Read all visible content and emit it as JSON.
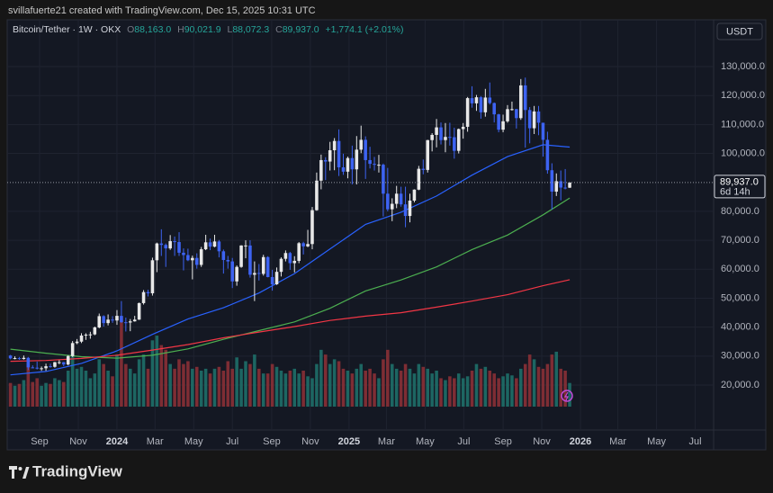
{
  "page": {
    "attribution": "svillafuerte21 created with TradingView.com, Dec 15, 2025 10:31 UTC",
    "brand": "TradingView"
  },
  "chart_data": {
    "type": "candlestick",
    "symbol": "Bitcoin/Tether · 1W · OKX",
    "quote": [
      [
        "O",
        "88,163.0"
      ],
      [
        "H",
        "90,021.9"
      ],
      [
        "L",
        "88,072.3"
      ],
      [
        "C",
        "89,937.0"
      ]
    ],
    "change": "+1,774.1 (+2.01%)",
    "currency": "USDT",
    "last_price_label": "89,937.0",
    "countdown": "6d 14h",
    "grid": true,
    "up_color": "#e8e8e8",
    "down_color": "#3d63f2",
    "volume_up_color": "#1e6f69",
    "volume_down_color": "#8a3036",
    "xlim": [
      -0.73,
      158.43
    ],
    "ylim": [
      4465,
      146160
    ],
    "xticks": [
      {
        "value": 6.57,
        "label": "Sep"
      },
      {
        "value": 15.29,
        "label": "Nov"
      },
      {
        "value": 24.0,
        "label": "2024"
      },
      {
        "value": 32.57,
        "label": "Mar"
      },
      {
        "value": 41.29,
        "label": "May"
      },
      {
        "value": 50.0,
        "label": "Jul"
      },
      {
        "value": 58.86,
        "label": "Sep"
      },
      {
        "value": 67.57,
        "label": "Nov"
      },
      {
        "value": 76.29,
        "label": "2025"
      },
      {
        "value": 84.71,
        "label": "Mar"
      },
      {
        "value": 93.43,
        "label": "May"
      },
      {
        "value": 102.14,
        "label": "Jul"
      },
      {
        "value": 111.0,
        "label": "Sep"
      },
      {
        "value": 119.71,
        "label": "Nov"
      },
      {
        "value": 128.43,
        "label": "2026"
      },
      {
        "value": 136.86,
        "label": "Mar"
      },
      {
        "value": 145.57,
        "label": "May"
      },
      {
        "value": 154.29,
        "label": "Jul"
      }
    ],
    "yticks": [
      {
        "value": 20000,
        "label": "20,000.0"
      },
      {
        "value": 30000,
        "label": "30,000.0"
      },
      {
        "value": 40000,
        "label": "40,000.0"
      },
      {
        "value": 50000,
        "label": "50,000.0"
      },
      {
        "value": 60000,
        "label": "60,000.0"
      },
      {
        "value": 70000,
        "label": "70,000.0"
      },
      {
        "value": 80000,
        "label": "80,000.0"
      },
      {
        "value": 100000,
        "label": "100,000.0"
      },
      {
        "value": 110000,
        "label": "110,000.0"
      },
      {
        "value": 120000,
        "label": "120,000.0"
      },
      {
        "value": 130000,
        "label": "130,000.0"
      }
    ],
    "ohlc": [
      [
        30200,
        30400,
        28900,
        29200
      ],
      [
        29200,
        29900,
        28900,
        29300
      ],
      [
        29300,
        29700,
        28700,
        29000
      ],
      [
        29000,
        30200,
        28800,
        29400
      ],
      [
        29400,
        29700,
        25200,
        26100
      ],
      [
        26100,
        26800,
        25800,
        26000
      ],
      [
        26000,
        28100,
        25400,
        25800
      ],
      [
        25800,
        26400,
        24900,
        25800
      ],
      [
        25800,
        27400,
        24900,
        26500
      ],
      [
        26500,
        27400,
        26000,
        26300
      ],
      [
        26300,
        28000,
        26000,
        27900
      ],
      [
        27900,
        28600,
        27200,
        27900
      ],
      [
        27900,
        28000,
        26500,
        27100
      ],
      [
        27100,
        30300,
        26800,
        30000
      ],
      [
        30000,
        35200,
        29700,
        34500
      ],
      [
        34500,
        35900,
        34100,
        35000
      ],
      [
        35000,
        37900,
        34500,
        37100
      ],
      [
        37100,
        37900,
        35600,
        37400
      ],
      [
        37400,
        38400,
        36000,
        37500
      ],
      [
        37500,
        40200,
        37200,
        39900
      ],
      [
        39900,
        44700,
        39600,
        43800
      ],
      [
        43800,
        44100,
        40200,
        41400
      ],
      [
        41400,
        44400,
        40600,
        42600
      ],
      [
        42600,
        43800,
        41500,
        42300
      ],
      [
        42300,
        45900,
        40800,
        43900
      ],
      [
        43900,
        49000,
        41500,
        41700
      ],
      [
        41700,
        43300,
        38500,
        41600
      ],
      [
        41600,
        42800,
        38600,
        42000
      ],
      [
        42000,
        43900,
        41900,
        42600
      ],
      [
        42600,
        48500,
        42500,
        48300
      ],
      [
        48300,
        52800,
        47800,
        52100
      ],
      [
        52100,
        52900,
        50600,
        51700
      ],
      [
        51700,
        64000,
        50900,
        63100
      ],
      [
        63100,
        69200,
        59000,
        68900
      ],
      [
        68900,
        73800,
        64600,
        68400
      ],
      [
        68400,
        68900,
        60800,
        67200
      ],
      [
        67200,
        71800,
        66700,
        69700
      ],
      [
        69700,
        71300,
        64600,
        69400
      ],
      [
        69400,
        72800,
        64600,
        65700
      ],
      [
        65700,
        67200,
        59600,
        64900
      ],
      [
        64900,
        67100,
        62800,
        63100
      ],
      [
        63100,
        64700,
        56500,
        63900
      ],
      [
        63900,
        65500,
        60200,
        61500
      ],
      [
        61500,
        67700,
        60800,
        66900
      ],
      [
        66900,
        71900,
        66600,
        69300
      ],
      [
        69300,
        70600,
        66600,
        67800
      ],
      [
        67800,
        71900,
        67600,
        69600
      ],
      [
        69600,
        70100,
        64100,
        66200
      ],
      [
        66200,
        66800,
        58500,
        63200
      ],
      [
        63200,
        64600,
        60200,
        62700
      ],
      [
        62700,
        63900,
        53500,
        55800
      ],
      [
        55800,
        61300,
        54300,
        60800
      ],
      [
        60800,
        68300,
        60500,
        68200
      ],
      [
        68200,
        70000,
        63800,
        68200
      ],
      [
        68200,
        70000,
        57100,
        58100
      ],
      [
        58100,
        62700,
        49000,
        58700
      ],
      [
        58700,
        61800,
        56100,
        58400
      ],
      [
        58400,
        65000,
        57800,
        64200
      ],
      [
        64200,
        64500,
        57200,
        57300
      ],
      [
        57300,
        59800,
        52600,
        54800
      ],
      [
        54800,
        60600,
        54600,
        59100
      ],
      [
        59100,
        64100,
        57500,
        63600
      ],
      [
        63600,
        66500,
        62700,
        65600
      ],
      [
        65600,
        66000,
        59800,
        62100
      ],
      [
        62100,
        64500,
        58900,
        62900
      ],
      [
        62900,
        69400,
        62100,
        69000
      ],
      [
        69000,
        69500,
        65100,
        67900
      ],
      [
        67900,
        73600,
        67600,
        68700
      ],
      [
        68700,
        81500,
        66900,
        80400
      ],
      [
        80400,
        93400,
        80200,
        90600
      ],
      [
        90600,
        99600,
        87600,
        97700
      ],
      [
        97700,
        98700,
        90800,
        97200
      ],
      [
        97200,
        104000,
        94100,
        101100
      ],
      [
        101100,
        105300,
        94200,
        104300
      ],
      [
        104300,
        108300,
        92200,
        95200
      ],
      [
        95200,
        99900,
        92600,
        93700
      ],
      [
        93700,
        98900,
        91400,
        98400
      ],
      [
        98400,
        102700,
        89300,
        94500
      ],
      [
        94500,
        106000,
        89300,
        101300
      ],
      [
        101300,
        109600,
        100100,
        104700
      ],
      [
        104700,
        105900,
        91200,
        97700
      ],
      [
        97700,
        102300,
        94800,
        96400
      ],
      [
        96400,
        98800,
        94100,
        96100
      ],
      [
        96100,
        99500,
        93400,
        96100
      ],
      [
        96100,
        96500,
        78200,
        86100
      ],
      [
        86100,
        95000,
        80000,
        80700
      ],
      [
        80700,
        84500,
        76600,
        82600
      ],
      [
        82600,
        88800,
        81100,
        86100
      ],
      [
        86100,
        88500,
        81600,
        82400
      ],
      [
        82400,
        88500,
        74500,
        78400
      ],
      [
        78400,
        86100,
        76200,
        83700
      ],
      [
        83700,
        87600,
        83100,
        87500
      ],
      [
        87500,
        95700,
        87300,
        94700
      ],
      [
        94700,
        97900,
        92800,
        94300
      ],
      [
        94300,
        104700,
        93400,
        104600
      ],
      [
        104600,
        107000,
        100700,
        106400
      ],
      [
        106400,
        111900,
        102100,
        109000
      ],
      [
        109000,
        110700,
        103100,
        104600
      ],
      [
        104600,
        110500,
        100400,
        105700
      ],
      [
        105700,
        110600,
        102700,
        105600
      ],
      [
        105600,
        108900,
        98200,
        100900
      ],
      [
        100900,
        108600,
        100000,
        108400
      ],
      [
        108400,
        110500,
        105100,
        109200
      ],
      [
        109200,
        119500,
        107500,
        119100
      ],
      [
        119100,
        123200,
        115800,
        117300
      ],
      [
        117300,
        120200,
        114700,
        119400
      ],
      [
        119400,
        119800,
        112000,
        114200
      ],
      [
        114200,
        122300,
        112700,
        119300
      ],
      [
        119300,
        124500,
        116900,
        117400
      ],
      [
        117400,
        117600,
        110700,
        113500
      ],
      [
        113500,
        113700,
        107300,
        108200
      ],
      [
        108200,
        113400,
        107300,
        111100
      ],
      [
        111100,
        116700,
        110600,
        115300
      ],
      [
        115300,
        117900,
        114800,
        115300
      ],
      [
        115300,
        115400,
        108600,
        112200
      ],
      [
        112200,
        125700,
        111600,
        123500
      ],
      [
        123500,
        126200,
        102000,
        115000
      ],
      [
        115000,
        116000,
        103500,
        108700
      ],
      [
        108700,
        116400,
        106700,
        114500
      ],
      [
        114500,
        116400,
        106300,
        110600
      ],
      [
        110600,
        110600,
        98900,
        104700
      ],
      [
        104700,
        107500,
        93000,
        94200
      ],
      [
        94200,
        96600,
        80600,
        86800
      ],
      [
        86800,
        93100,
        85300,
        90400
      ],
      [
        90400,
        94100,
        83800,
        88200
      ],
      [
        88200,
        94600,
        87600,
        88163
      ],
      [
        88163,
        90021.9,
        88072.3,
        89937
      ]
    ],
    "volume": [
      25,
      22,
      24,
      28,
      45,
      26,
      30,
      22,
      25,
      24,
      30,
      28,
      26,
      38,
      55,
      40,
      42,
      38,
      30,
      35,
      50,
      45,
      38,
      32,
      55,
      95,
      45,
      40,
      35,
      50,
      55,
      40,
      70,
      75,
      65,
      60,
      45,
      40,
      50,
      45,
      48,
      40,
      42,
      38,
      40,
      35,
      40,
      42,
      38,
      48,
      40,
      52,
      40,
      48,
      45,
      55,
      40,
      35,
      35,
      45,
      42,
      38,
      35,
      38,
      40,
      35,
      38,
      32,
      30,
      45,
      60,
      55,
      45,
      50,
      48,
      40,
      38,
      35,
      40,
      45,
      38,
      40,
      35,
      30,
      50,
      60,
      45,
      40,
      38,
      45,
      40,
      35,
      45,
      42,
      40,
      35,
      38,
      30,
      28,
      32,
      30,
      35,
      30,
      32,
      38,
      45,
      40,
      42,
      38,
      35,
      30,
      32,
      35,
      33,
      30,
      40,
      45,
      55,
      50,
      42,
      40,
      45,
      55,
      58,
      40,
      38,
      25
    ],
    "ma_x": [
      0,
      8,
      16,
      24,
      32,
      40,
      48,
      56,
      64,
      72,
      80,
      88,
      96,
      104,
      112,
      120,
      126
    ],
    "moving_averages": [
      {
        "color": "#2962ff",
        "values": [
          23500,
          24700,
          27500,
          31800,
          37500,
          42800,
          46700,
          51800,
          58500,
          67000,
          75500,
          79700,
          85300,
          92500,
          98900,
          103000,
          102200
        ]
      },
      {
        "color": "#4caf50",
        "values": [
          32400,
          31000,
          29800,
          29300,
          30300,
          32500,
          35800,
          38800,
          41800,
          46500,
          52500,
          56300,
          60800,
          66800,
          71800,
          78800,
          84600
        ]
      },
      {
        "color": "#f23645",
        "values": [
          28200,
          28500,
          29200,
          30300,
          32100,
          34000,
          36300,
          38300,
          40200,
          42300,
          43800,
          45000,
          46900,
          49000,
          51200,
          54300,
          56400
        ]
      }
    ]
  }
}
